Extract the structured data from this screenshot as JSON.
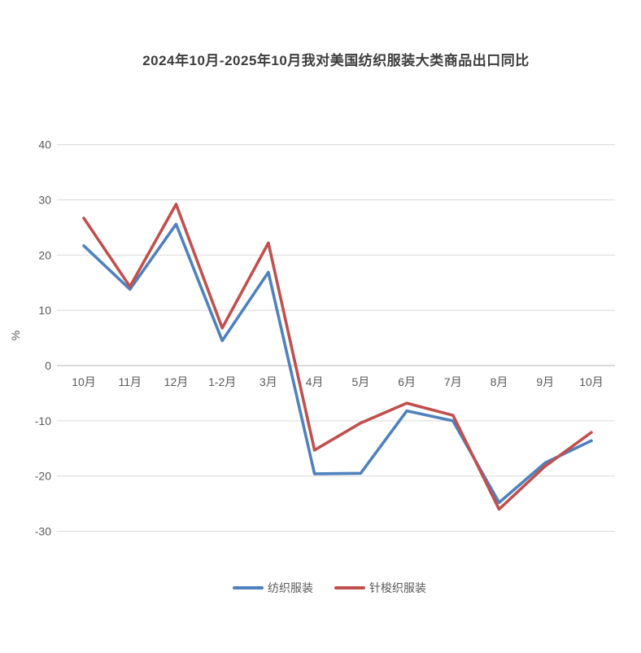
{
  "chart_data": {
    "type": "line",
    "title": "2024年10月-2025年10月我对美国纺织服装大类商品出口同比",
    "xlabel": "",
    "ylabel": "%",
    "categories": [
      "10月",
      "11月",
      "12月",
      "1-2月",
      "3月",
      "4月",
      "5月",
      "6月",
      "7月",
      "8月",
      "9月",
      "10月"
    ],
    "series": [
      {
        "name": "纺织服装",
        "color": "#4F81BD",
        "values": [
          21.7,
          13.8,
          25.6,
          4.5,
          16.9,
          -19.6,
          -19.5,
          -8.2,
          -10.0,
          -24.8,
          -17.6,
          -13.6
        ]
      },
      {
        "name": "针梭织服装",
        "color": "#C0504D",
        "values": [
          26.7,
          14.3,
          29.2,
          6.8,
          22.2,
          -15.3,
          -10.4,
          -6.8,
          -9.0,
          -26.0,
          -18.2,
          -12.1
        ]
      }
    ],
    "y_ticks": [
      40,
      30,
      20,
      10,
      0,
      -10,
      -20,
      -30
    ],
    "ylim": [
      -35,
      45
    ],
    "grid": true,
    "legend_position": "bottom"
  },
  "style": {
    "gridline_color": "#d9d9d9",
    "axis_line_color": "#b5b5b5",
    "tick_label_color": "#595959",
    "line_width": 3.6
  }
}
